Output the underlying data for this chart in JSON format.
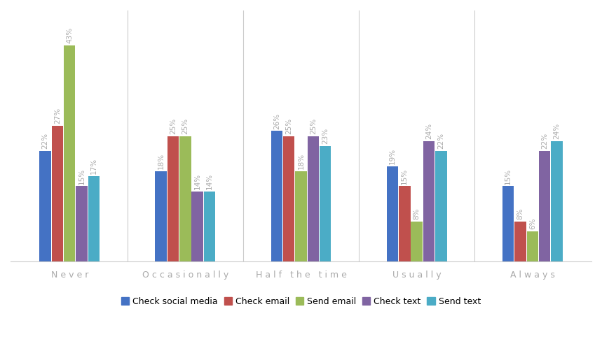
{
  "categories": [
    "Never",
    "Occasionally",
    "Half the time",
    "Usually",
    "Always"
  ],
  "series": {
    "Check social media": [
      22,
      18,
      26,
      19,
      15
    ],
    "Check email": [
      27,
      25,
      25,
      15,
      8
    ],
    "Send email": [
      43,
      25,
      18,
      8,
      6
    ],
    "Check text": [
      15,
      14,
      25,
      24,
      22
    ],
    "Send text": [
      17,
      14,
      23,
      22,
      24
    ]
  },
  "colors": {
    "Check social media": "#4472c4",
    "Check email": "#c0504d",
    "Send email": "#9bbb59",
    "Check text": "#8064a2",
    "Send text": "#4bacc6"
  },
  "ylim": [
    0,
    50
  ],
  "bar_width": 0.1,
  "label_fontsize": 7.5,
  "legend_fontsize": 9,
  "tick_fontsize": 9,
  "background_color": "#ffffff",
  "separator_color": "#cccccc",
  "label_color": "#aaaaaa"
}
